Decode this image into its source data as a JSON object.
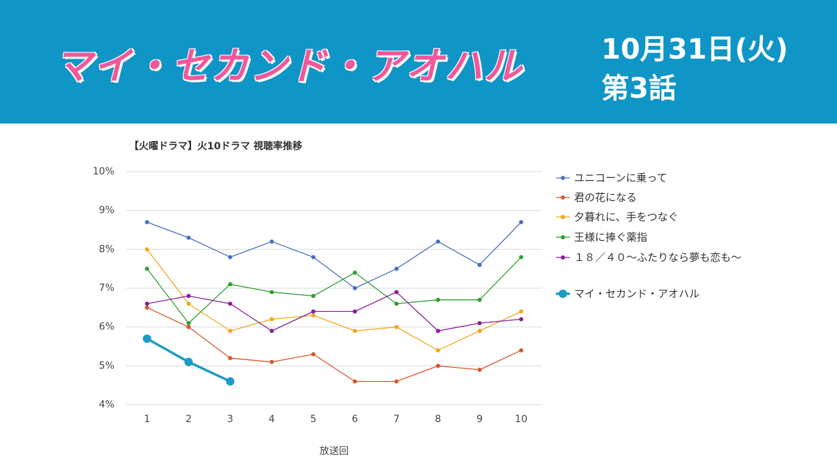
{
  "header": {
    "title": "マイ・セカンド・アオハル",
    "date": "10月31日(火)",
    "episode": "第3話"
  },
  "chart_data": {
    "type": "line",
    "title": "【火曜ドラマ】火10ドラマ 視聴率推移",
    "x_label": "放送回",
    "categories": [
      "1",
      "2",
      "3",
      "4",
      "5",
      "6",
      "7",
      "8",
      "9",
      "10"
    ],
    "ylim": [
      4,
      10
    ],
    "yticks": [
      {
        "value": 4,
        "label": "4%"
      },
      {
        "value": 5,
        "label": "5%"
      },
      {
        "value": 6,
        "label": "6%"
      },
      {
        "value": 7,
        "label": "7%"
      },
      {
        "value": 8,
        "label": "8%"
      },
      {
        "value": 9,
        "label": "9%"
      },
      {
        "value": 10,
        "label": "10%"
      }
    ],
    "grid": true,
    "legend": "right",
    "series": [
      {
        "name": "ユニコーンに乗って",
        "color": "#4a70be",
        "line_width": 1.3,
        "marker_radius": 3,
        "values": [
          8.7,
          8.3,
          7.8,
          8.2,
          7.8,
          7.0,
          7.5,
          8.2,
          7.6,
          8.7
        ]
      },
      {
        "name": "君の花になる",
        "color": "#d9562b",
        "line_width": 1.3,
        "marker_radius": 3,
        "values": [
          6.5,
          6.0,
          5.2,
          5.1,
          5.3,
          4.6,
          4.6,
          5.0,
          4.9,
          5.4
        ]
      },
      {
        "name": "夕暮れに、手をつなぐ",
        "color": "#f2a71b",
        "line_width": 1.3,
        "marker_radius": 3,
        "values": [
          8.0,
          6.6,
          5.9,
          6.2,
          6.3,
          5.9,
          6.0,
          5.4,
          5.9,
          6.4
        ]
      },
      {
        "name": "王様に捧ぐ薬指",
        "color": "#2f9e2f",
        "line_width": 1.3,
        "marker_radius": 3,
        "values": [
          7.5,
          6.1,
          7.1,
          6.9,
          6.8,
          7.4,
          6.6,
          6.7,
          6.7,
          7.8
        ]
      },
      {
        "name": "１８／４０～ふたりなら夢も恋も～",
        "color": "#8a1d98",
        "line_width": 1.3,
        "marker_radius": 3,
        "values": [
          6.6,
          6.8,
          6.6,
          5.9,
          6.4,
          6.4,
          6.9,
          5.9,
          6.1,
          6.2
        ]
      },
      {
        "name": "マイ・セカンド・アオハル",
        "color": "#1c9bc6",
        "line_width": 3.5,
        "marker_radius": 6,
        "values": [
          5.7,
          5.1,
          4.6,
          null,
          null,
          null,
          null,
          null,
          null,
          null
        ]
      }
    ]
  }
}
